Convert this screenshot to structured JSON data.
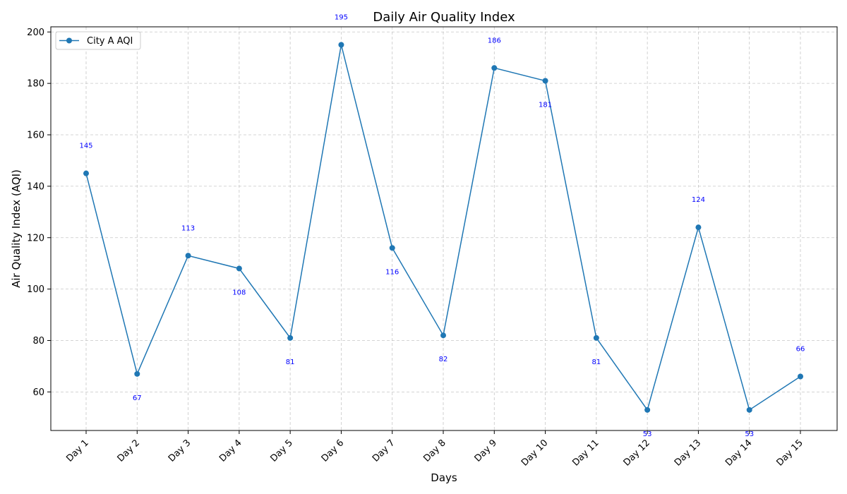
{
  "chart_data": {
    "type": "line",
    "title": "Daily Air Quality Index",
    "xlabel": "Days",
    "ylabel": "Air Quality Index (AQI)",
    "categories": [
      "Day 1",
      "Day 2",
      "Day 3",
      "Day 4",
      "Day 5",
      "Day 6",
      "Day 7",
      "Day 8",
      "Day 9",
      "Day 10",
      "Day 11",
      "Day 12",
      "Day 13",
      "Day 14",
      "Day 15"
    ],
    "series": [
      {
        "name": "City A AQI",
        "values": [
          145,
          67,
          113,
          108,
          81,
          195,
          116,
          82,
          186,
          181,
          81,
          53,
          124,
          53,
          66
        ],
        "color": "#1f77b4"
      }
    ],
    "data_labels": [
      "145",
      "67",
      "113",
      "108",
      "81",
      "195",
      "116",
      "82",
      "186",
      "181",
      "81",
      "53",
      "124",
      "53",
      "66"
    ],
    "data_label_color": "#0000ff",
    "ylim": [
      45,
      202
    ],
    "yticks": [
      60,
      80,
      100,
      120,
      140,
      160,
      180,
      200
    ],
    "grid": true,
    "legend_position": "top-left"
  }
}
